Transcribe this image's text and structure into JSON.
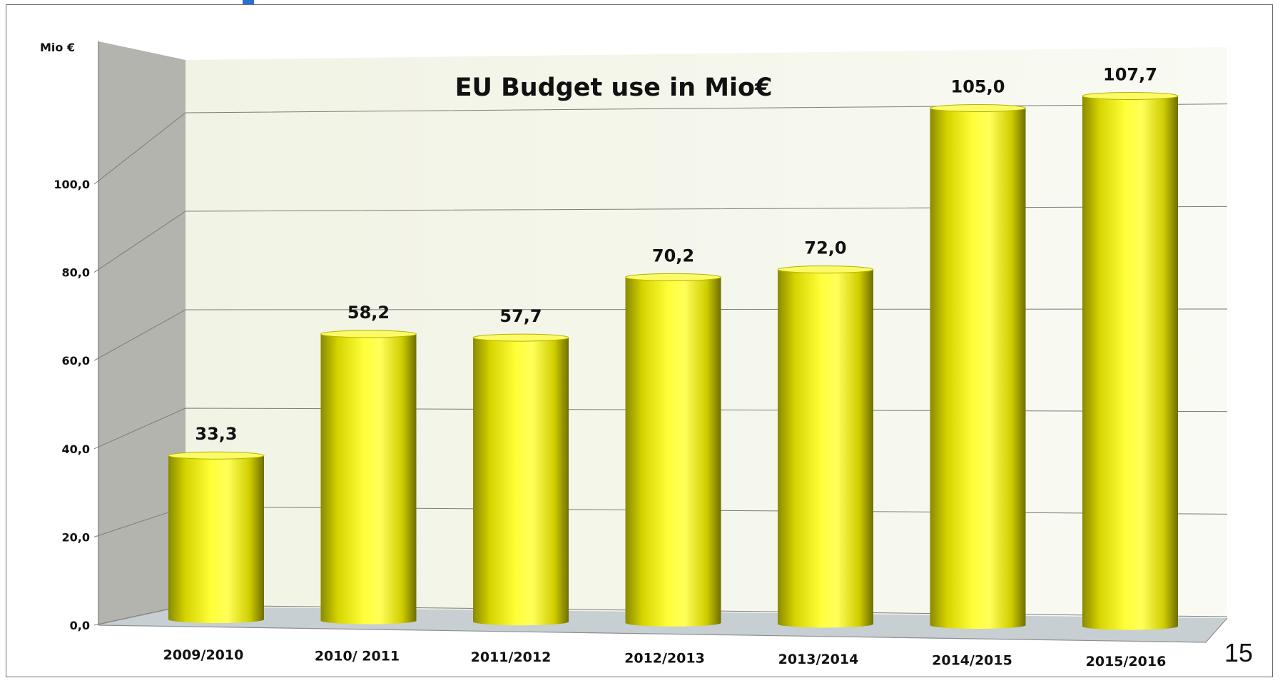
{
  "page_number": "15",
  "colors": {
    "bar_light": "#ffff3a",
    "bar_mid": "#e8e600",
    "bar_dark": "#8a8a00",
    "bar_top": "#fbfb6a",
    "back_wall": "#f6f8ec",
    "side_wall": "#b3b4ae",
    "floor": "#c7cfd3",
    "gridline": "#7c7c7c",
    "accent": "#2b6fd6"
  },
  "chart_data": {
    "type": "bar",
    "title": "EU Budget use in Mio€",
    "ylabel": "Mio €",
    "xlabel": "",
    "categories": [
      "2009/2010",
      "2010/ 2011",
      "2011/2012",
      "2012/2013",
      "2013/2014",
      "2014/2015",
      "2015/2016"
    ],
    "values": [
      33.3,
      58.2,
      57.7,
      70.2,
      72.0,
      105.0,
      107.7
    ],
    "value_labels": [
      "33,3",
      "58,2",
      "57,7",
      "70,2",
      "72,0",
      "105,0",
      "107,7"
    ],
    "y_ticks": [
      "0,0",
      "20,0",
      "40,0",
      "60,0",
      "80,0",
      "100,0"
    ],
    "ylim": [
      0,
      120
    ],
    "grid": true,
    "style": "3d-cylinder"
  }
}
